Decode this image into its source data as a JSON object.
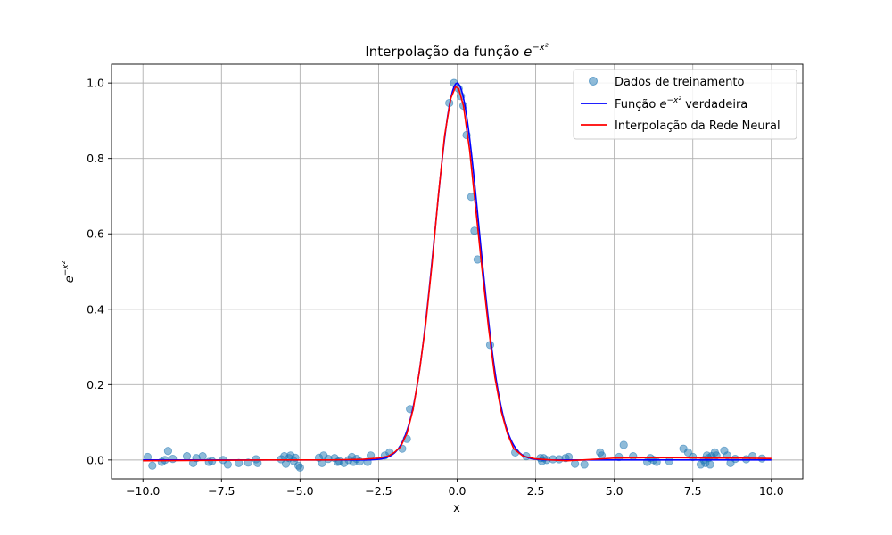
{
  "chart_data": {
    "type": "line",
    "title_text": "Interpolação da função ",
    "title_math": {
      "base": "e",
      "exponent": "−x²"
    },
    "xlabel": "x",
    "ylabel_math": {
      "base": "e",
      "exponent": "−x²"
    },
    "xlim": [
      -11,
      11
    ],
    "ylim": [
      -0.05,
      1.05
    ],
    "xticks": [
      -10.0,
      -7.5,
      -5.0,
      -2.5,
      0.0,
      2.5,
      5.0,
      7.5,
      10.0
    ],
    "xtick_labels": [
      "−10.0",
      "−7.5",
      "−5.0",
      "−2.5",
      "0.0",
      "2.5",
      "5.0",
      "7.5",
      "10.0"
    ],
    "yticks": [
      0.0,
      0.2,
      0.4,
      0.6,
      0.8,
      1.0
    ],
    "ytick_labels": [
      "0.0",
      "0.2",
      "0.4",
      "0.6",
      "0.8",
      "1.0"
    ],
    "grid": true,
    "legend_position": "top-right",
    "legend": [
      {
        "kind": "scatter",
        "text": "Dados de treinamento"
      },
      {
        "kind": "line",
        "prefix": "Função ",
        "math": {
          "base": "e",
          "exponent": "−x²"
        },
        "suffix": " verdadeira"
      },
      {
        "kind": "line",
        "text": "Interpolação da Rede Neural"
      }
    ],
    "colors": {
      "scatter": "#1f77b4",
      "true_line": "#0000ff",
      "nn_line": "#ff0000",
      "grid": "#b0b0b0"
    },
    "scatter_points": [
      [
        -9.85,
        0.008
      ],
      [
        -9.7,
        -0.015
      ],
      [
        -9.4,
        -0.005
      ],
      [
        -9.3,
        0.0
      ],
      [
        -9.2,
        0.024
      ],
      [
        -9.05,
        0.003
      ],
      [
        -8.6,
        0.01
      ],
      [
        -8.4,
        -0.008
      ],
      [
        -8.3,
        0.005
      ],
      [
        -8.1,
        0.01
      ],
      [
        -7.9,
        -0.005
      ],
      [
        -7.8,
        -0.003
      ],
      [
        -7.45,
        0.0
      ],
      [
        -7.3,
        -0.012
      ],
      [
        -6.95,
        -0.008
      ],
      [
        -6.65,
        -0.007
      ],
      [
        -6.4,
        0.002
      ],
      [
        -6.35,
        -0.008
      ],
      [
        -5.6,
        0.002
      ],
      [
        -5.5,
        0.01
      ],
      [
        -5.45,
        -0.01
      ],
      [
        -5.35,
        0.005
      ],
      [
        -5.3,
        0.012
      ],
      [
        -5.2,
        -0.003
      ],
      [
        -5.15,
        0.006
      ],
      [
        -5.05,
        -0.015
      ],
      [
        -5.0,
        -0.02
      ],
      [
        -4.4,
        0.006
      ],
      [
        -4.3,
        -0.008
      ],
      [
        -4.25,
        0.012
      ],
      [
        -4.1,
        0.003
      ],
      [
        -3.9,
        0.005
      ],
      [
        -3.8,
        -0.005
      ],
      [
        -3.75,
        -0.003
      ],
      [
        -3.6,
        -0.008
      ],
      [
        -3.45,
        0.0
      ],
      [
        -3.35,
        0.008
      ],
      [
        -3.3,
        -0.005
      ],
      [
        -3.2,
        0.003
      ],
      [
        -3.1,
        -0.004
      ],
      [
        -2.85,
        -0.005
      ],
      [
        -2.75,
        0.012
      ],
      [
        -2.3,
        0.012
      ],
      [
        -2.15,
        0.02
      ],
      [
        -1.75,
        0.03
      ],
      [
        -1.6,
        0.056
      ],
      [
        -1.5,
        0.135
      ],
      [
        -0.25,
        0.947
      ],
      [
        -0.1,
        1.0
      ],
      [
        0.05,
        0.985
      ],
      [
        0.12,
        0.965
      ],
      [
        0.2,
        0.94
      ],
      [
        0.3,
        0.862
      ],
      [
        0.45,
        0.698
      ],
      [
        0.55,
        0.608
      ],
      [
        0.65,
        0.532
      ],
      [
        1.05,
        0.305
      ],
      [
        1.85,
        0.02
      ],
      [
        2.2,
        0.01
      ],
      [
        2.65,
        0.005
      ],
      [
        2.7,
        -0.003
      ],
      [
        2.75,
        0.005
      ],
      [
        2.85,
        0.0
      ],
      [
        3.05,
        0.002
      ],
      [
        3.25,
        0.002
      ],
      [
        3.45,
        0.005
      ],
      [
        3.55,
        0.008
      ],
      [
        3.75,
        -0.01
      ],
      [
        4.05,
        -0.012
      ],
      [
        4.55,
        0.02
      ],
      [
        4.6,
        0.012
      ],
      [
        5.15,
        0.008
      ],
      [
        5.3,
        0.04
      ],
      [
        5.6,
        0.01
      ],
      [
        6.05,
        -0.005
      ],
      [
        6.15,
        0.005
      ],
      [
        6.25,
        0.0
      ],
      [
        6.35,
        -0.005
      ],
      [
        6.75,
        -0.003
      ],
      [
        7.2,
        0.03
      ],
      [
        7.35,
        0.02
      ],
      [
        7.5,
        0.008
      ],
      [
        7.75,
        -0.012
      ],
      [
        7.85,
        0.0
      ],
      [
        7.9,
        -0.008
      ],
      [
        7.95,
        0.012
      ],
      [
        8.0,
        0.005
      ],
      [
        8.05,
        -0.012
      ],
      [
        8.1,
        0.01
      ],
      [
        8.2,
        0.02
      ],
      [
        8.25,
        0.012
      ],
      [
        8.5,
        0.025
      ],
      [
        8.6,
        0.012
      ],
      [
        8.7,
        -0.008
      ],
      [
        8.85,
        0.003
      ],
      [
        9.2,
        0.002
      ],
      [
        9.4,
        0.01
      ],
      [
        9.7,
        0.004
      ]
    ],
    "true_curve": {
      "function": "exp(-x^2)",
      "x_range": [
        -10,
        10
      ]
    },
    "nn_curve": [
      [
        -10.0,
        -0.002
      ],
      [
        -8.0,
        -0.001
      ],
      [
        -6.0,
        0.0
      ],
      [
        -4.0,
        0.0
      ],
      [
        -3.0,
        0.002
      ],
      [
        -2.5,
        0.005
      ],
      [
        -2.2,
        0.01
      ],
      [
        -2.0,
        0.02
      ],
      [
        -1.8,
        0.035
      ],
      [
        -1.6,
        0.07
      ],
      [
        -1.4,
        0.135
      ],
      [
        -1.2,
        0.235
      ],
      [
        -1.0,
        0.36
      ],
      [
        -0.8,
        0.52
      ],
      [
        -0.6,
        0.7
      ],
      [
        -0.4,
        0.86
      ],
      [
        -0.2,
        0.96
      ],
      [
        -0.05,
        0.99
      ],
      [
        0.05,
        0.985
      ],
      [
        0.2,
        0.94
      ],
      [
        0.4,
        0.82
      ],
      [
        0.6,
        0.66
      ],
      [
        0.8,
        0.5
      ],
      [
        1.0,
        0.35
      ],
      [
        1.2,
        0.22
      ],
      [
        1.4,
        0.13
      ],
      [
        1.6,
        0.07
      ],
      [
        1.8,
        0.03
      ],
      [
        2.1,
        0.01
      ],
      [
        2.5,
        0.003
      ],
      [
        3.0,
        0.0
      ],
      [
        3.5,
        -0.002
      ],
      [
        4.0,
        0.0
      ],
      [
        5.0,
        0.005
      ],
      [
        6.0,
        0.006
      ],
      [
        7.0,
        0.006
      ],
      [
        8.0,
        0.005
      ],
      [
        9.0,
        0.005
      ],
      [
        10.0,
        0.004
      ]
    ]
  }
}
